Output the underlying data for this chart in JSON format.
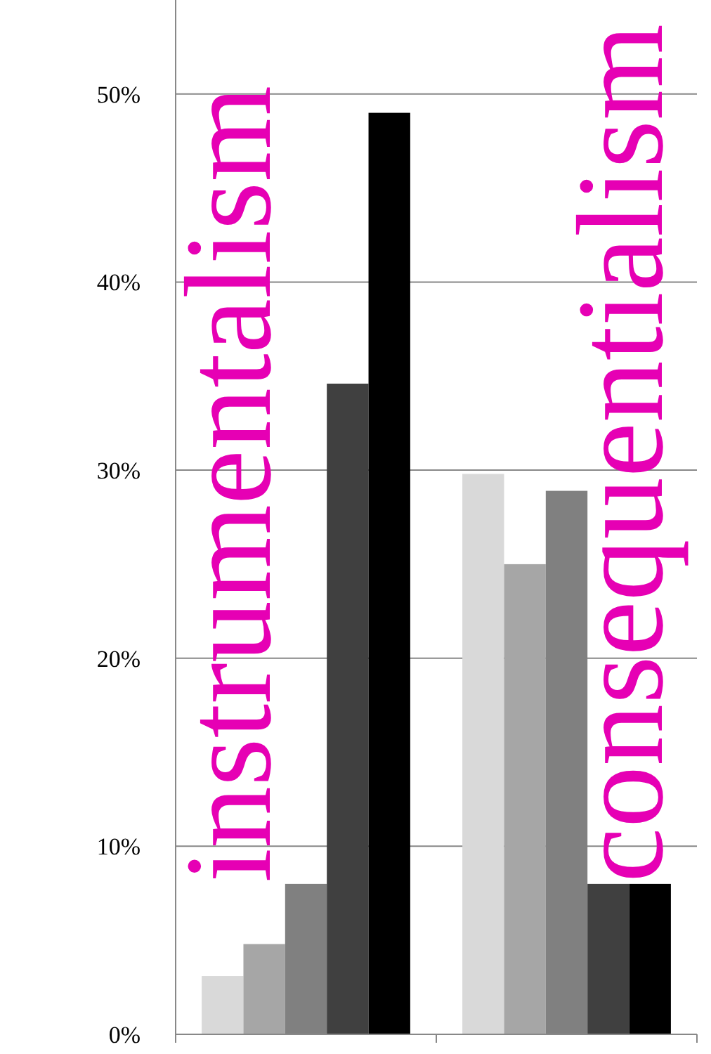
{
  "chart_data": {
    "type": "bar",
    "categories": [
      null,
      null
    ],
    "series": [
      {
        "color": "#d9d9d9",
        "values": [
          3.1,
          29.8
        ]
      },
      {
        "color": "#a6a6a6",
        "values": [
          4.8,
          25.0
        ]
      },
      {
        "color": "#808080",
        "values": [
          8.0,
          28.9
        ]
      },
      {
        "color": "#404040",
        "values": [
          34.6,
          8.0
        ]
      },
      {
        "color": "#000000",
        "values": [
          49.0,
          8.0
        ]
      }
    ],
    "ylim": [
      0,
      55
    ],
    "yticks": [
      {
        "value": 0,
        "label": "0%"
      },
      {
        "value": 10,
        "label": "10%"
      },
      {
        "value": 20,
        "label": "20%"
      },
      {
        "value": 30,
        "label": "30%"
      },
      {
        "value": 40,
        "label": "40%"
      },
      {
        "value": 50,
        "label": "50%"
      }
    ],
    "grid": "y",
    "annotations": [
      "instrumentalism",
      "consequentialism"
    ]
  }
}
